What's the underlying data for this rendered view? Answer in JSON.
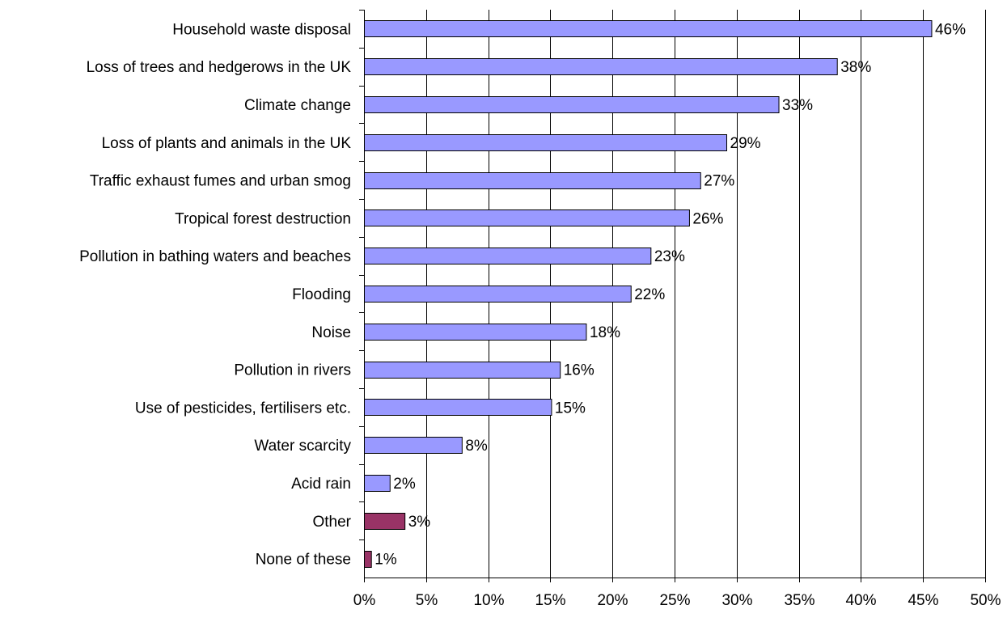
{
  "chart_data": {
    "type": "bar",
    "orientation": "horizontal",
    "title": "",
    "xlabel": "",
    "ylabel": "",
    "xlim": [
      0,
      50
    ],
    "x_tick_step": 5,
    "x_tick_suffix": "%",
    "grid": "vertical",
    "legend": "none",
    "colors": {
      "main": "#9999FF",
      "other": "#993366"
    },
    "categories": [
      "Household waste disposal",
      "Loss of trees and hedgerows in the UK",
      "Climate change",
      "Loss of plants and animals in the UK",
      "Traffic exhaust fumes and urban smog",
      "Tropical forest destruction",
      "Pollution in bathing waters and beaches",
      "Flooding",
      "Noise",
      "Pollution in rivers",
      "Use of pesticides, fertilisers etc.",
      "Water scarcity",
      "Acid rain",
      "Other",
      "None of these"
    ],
    "values": [
      45.7,
      38.1,
      33.4,
      29.2,
      27.1,
      26.2,
      23.1,
      21.5,
      17.9,
      15.8,
      15.1,
      7.9,
      2.1,
      3.3,
      0.6
    ],
    "data_labels": [
      "46%",
      "38%",
      "33%",
      "29%",
      "27%",
      "26%",
      "23%",
      "22%",
      "18%",
      "16%",
      "15%",
      "8%",
      "2%",
      "3%",
      "1%"
    ],
    "bar_color_keys": [
      "main",
      "main",
      "main",
      "main",
      "main",
      "main",
      "main",
      "main",
      "main",
      "main",
      "main",
      "main",
      "main",
      "other",
      "other"
    ]
  }
}
